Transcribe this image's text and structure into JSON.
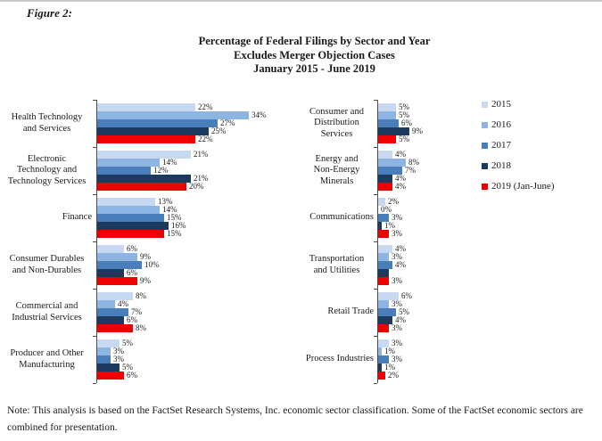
{
  "figure_label": "Figure 2:",
  "title": {
    "line1": "Percentage of Federal Filings by Sector and Year",
    "line2": "Excludes Merger Objection Cases",
    "line3": "January 2015 - June 2019"
  },
  "note": "Note: This analysis is based on the FactSet Research Systems, Inc. economic sector classification. Some of the FactSet economic sectors are combined for presentation.",
  "legend": {
    "position": "right",
    "items": [
      {
        "label": "2015",
        "color": "#C6D9F1"
      },
      {
        "label": "2016",
        "color": "#8EB4E2"
      },
      {
        "label": "2017",
        "color": "#4A7EBB"
      },
      {
        "label": "2018",
        "color": "#1C3A5E"
      },
      {
        "label": "2019 (Jan-June)",
        "color": "#EE0000"
      }
    ]
  },
  "chart_data": {
    "type": "bar",
    "orientation": "horizontal",
    "title": "Percentage of Federal Filings by Sector and Year",
    "subtitle": "Excludes Merger Objection Cases, January 2015 - June 2019",
    "value_unit": "percent",
    "grid": false,
    "legend_position": "right",
    "series": [
      "2015",
      "2016",
      "2017",
      "2018",
      "2019 (Jan-June)"
    ],
    "series_colors": [
      "#C6D9F1",
      "#8EB4E2",
      "#4A7EBB",
      "#1C3A5E",
      "#EE0000"
    ],
    "panels": [
      {
        "id": "left",
        "groups": [
          {
            "category": "Health Technology and Services",
            "category_lines": [
              "Health Technology",
              "and Services"
            ],
            "values": [
              22,
              34,
              27,
              25,
              22
            ],
            "labels": [
              "22%",
              "34%",
              "27%",
              "25%",
              "22%"
            ]
          },
          {
            "category": "Electronic Technology and Technology Services",
            "category_lines": [
              "Electronic",
              "Technology and",
              "Technology Services"
            ],
            "values": [
              21,
              14,
              12,
              21,
              20
            ],
            "labels": [
              "21%",
              "14%",
              "12%",
              "21%",
              "20%"
            ]
          },
          {
            "category": "Finance",
            "category_lines": [
              "Finance"
            ],
            "values": [
              13,
              14,
              15,
              16,
              15
            ],
            "labels": [
              "13%",
              "14%",
              "15%",
              "16%",
              "15%"
            ]
          },
          {
            "category": "Consumer Durables and Non-Durables",
            "category_lines": [
              "Consumer Durables",
              "and Non-Durables"
            ],
            "values": [
              6,
              9,
              10,
              6,
              9
            ],
            "labels": [
              "6%",
              "9%",
              "10%",
              "6%",
              "9%"
            ]
          },
          {
            "category": "Commercial and Industrial Services",
            "category_lines": [
              "Commercial and",
              "Industrial Services"
            ],
            "values": [
              8,
              4,
              7,
              6,
              8
            ],
            "labels": [
              "8%",
              "4%",
              "7%",
              "6%",
              "8%"
            ]
          },
          {
            "category": "Producer and Other Manufacturing",
            "category_lines": [
              "Producer and Other",
              "Manufacturing"
            ],
            "values": [
              5,
              3,
              3,
              5,
              6
            ],
            "labels": [
              "5%",
              "3%",
              "3%",
              "5%",
              "6%"
            ]
          }
        ]
      },
      {
        "id": "right",
        "groups": [
          {
            "category": "Consumer and Distribution Services",
            "category_lines": [
              "Consumer and",
              "Distribution",
              "Services"
            ],
            "values": [
              5,
              5,
              6,
              9,
              5
            ],
            "labels": [
              "5%",
              "5%",
              "6%",
              "9%",
              "5%"
            ]
          },
          {
            "category": "Energy and Non-Energy Minerals",
            "category_lines": [
              "Energy and",
              "Non-Energy",
              "Minerals"
            ],
            "values": [
              4,
              8,
              7,
              4,
              4
            ],
            "labels": [
              "4%",
              "8%",
              "7%",
              "4%",
              "4%"
            ]
          },
          {
            "category": "Communications",
            "category_lines": [
              "Communications"
            ],
            "values": [
              2,
              0,
              3,
              1,
              3
            ],
            "labels": [
              "2%",
              "0%",
              "3%",
              "1%",
              "3%"
            ]
          },
          {
            "category": "Transportation and Utilities",
            "category_lines": [
              "Transportation",
              "and Utilities"
            ],
            "values": [
              4,
              3,
              4,
              3,
              3
            ],
            "labels": [
              "4%",
              "3%",
              "4%",
              "",
              "3%"
            ]
          },
          {
            "category": "Retail Trade",
            "category_lines": [
              "Retail Trade"
            ],
            "values": [
              6,
              3,
              5,
              4,
              3
            ],
            "labels": [
              "6%",
              "3%",
              "5%",
              "4%",
              "3%"
            ]
          },
          {
            "category": "Process Industries",
            "category_lines": [
              "Process Industries"
            ],
            "values": [
              3,
              1,
              3,
              1,
              2
            ],
            "labels": [
              "3%",
              "1%",
              "3%",
              "1%",
              "2%"
            ]
          }
        ]
      }
    ]
  }
}
